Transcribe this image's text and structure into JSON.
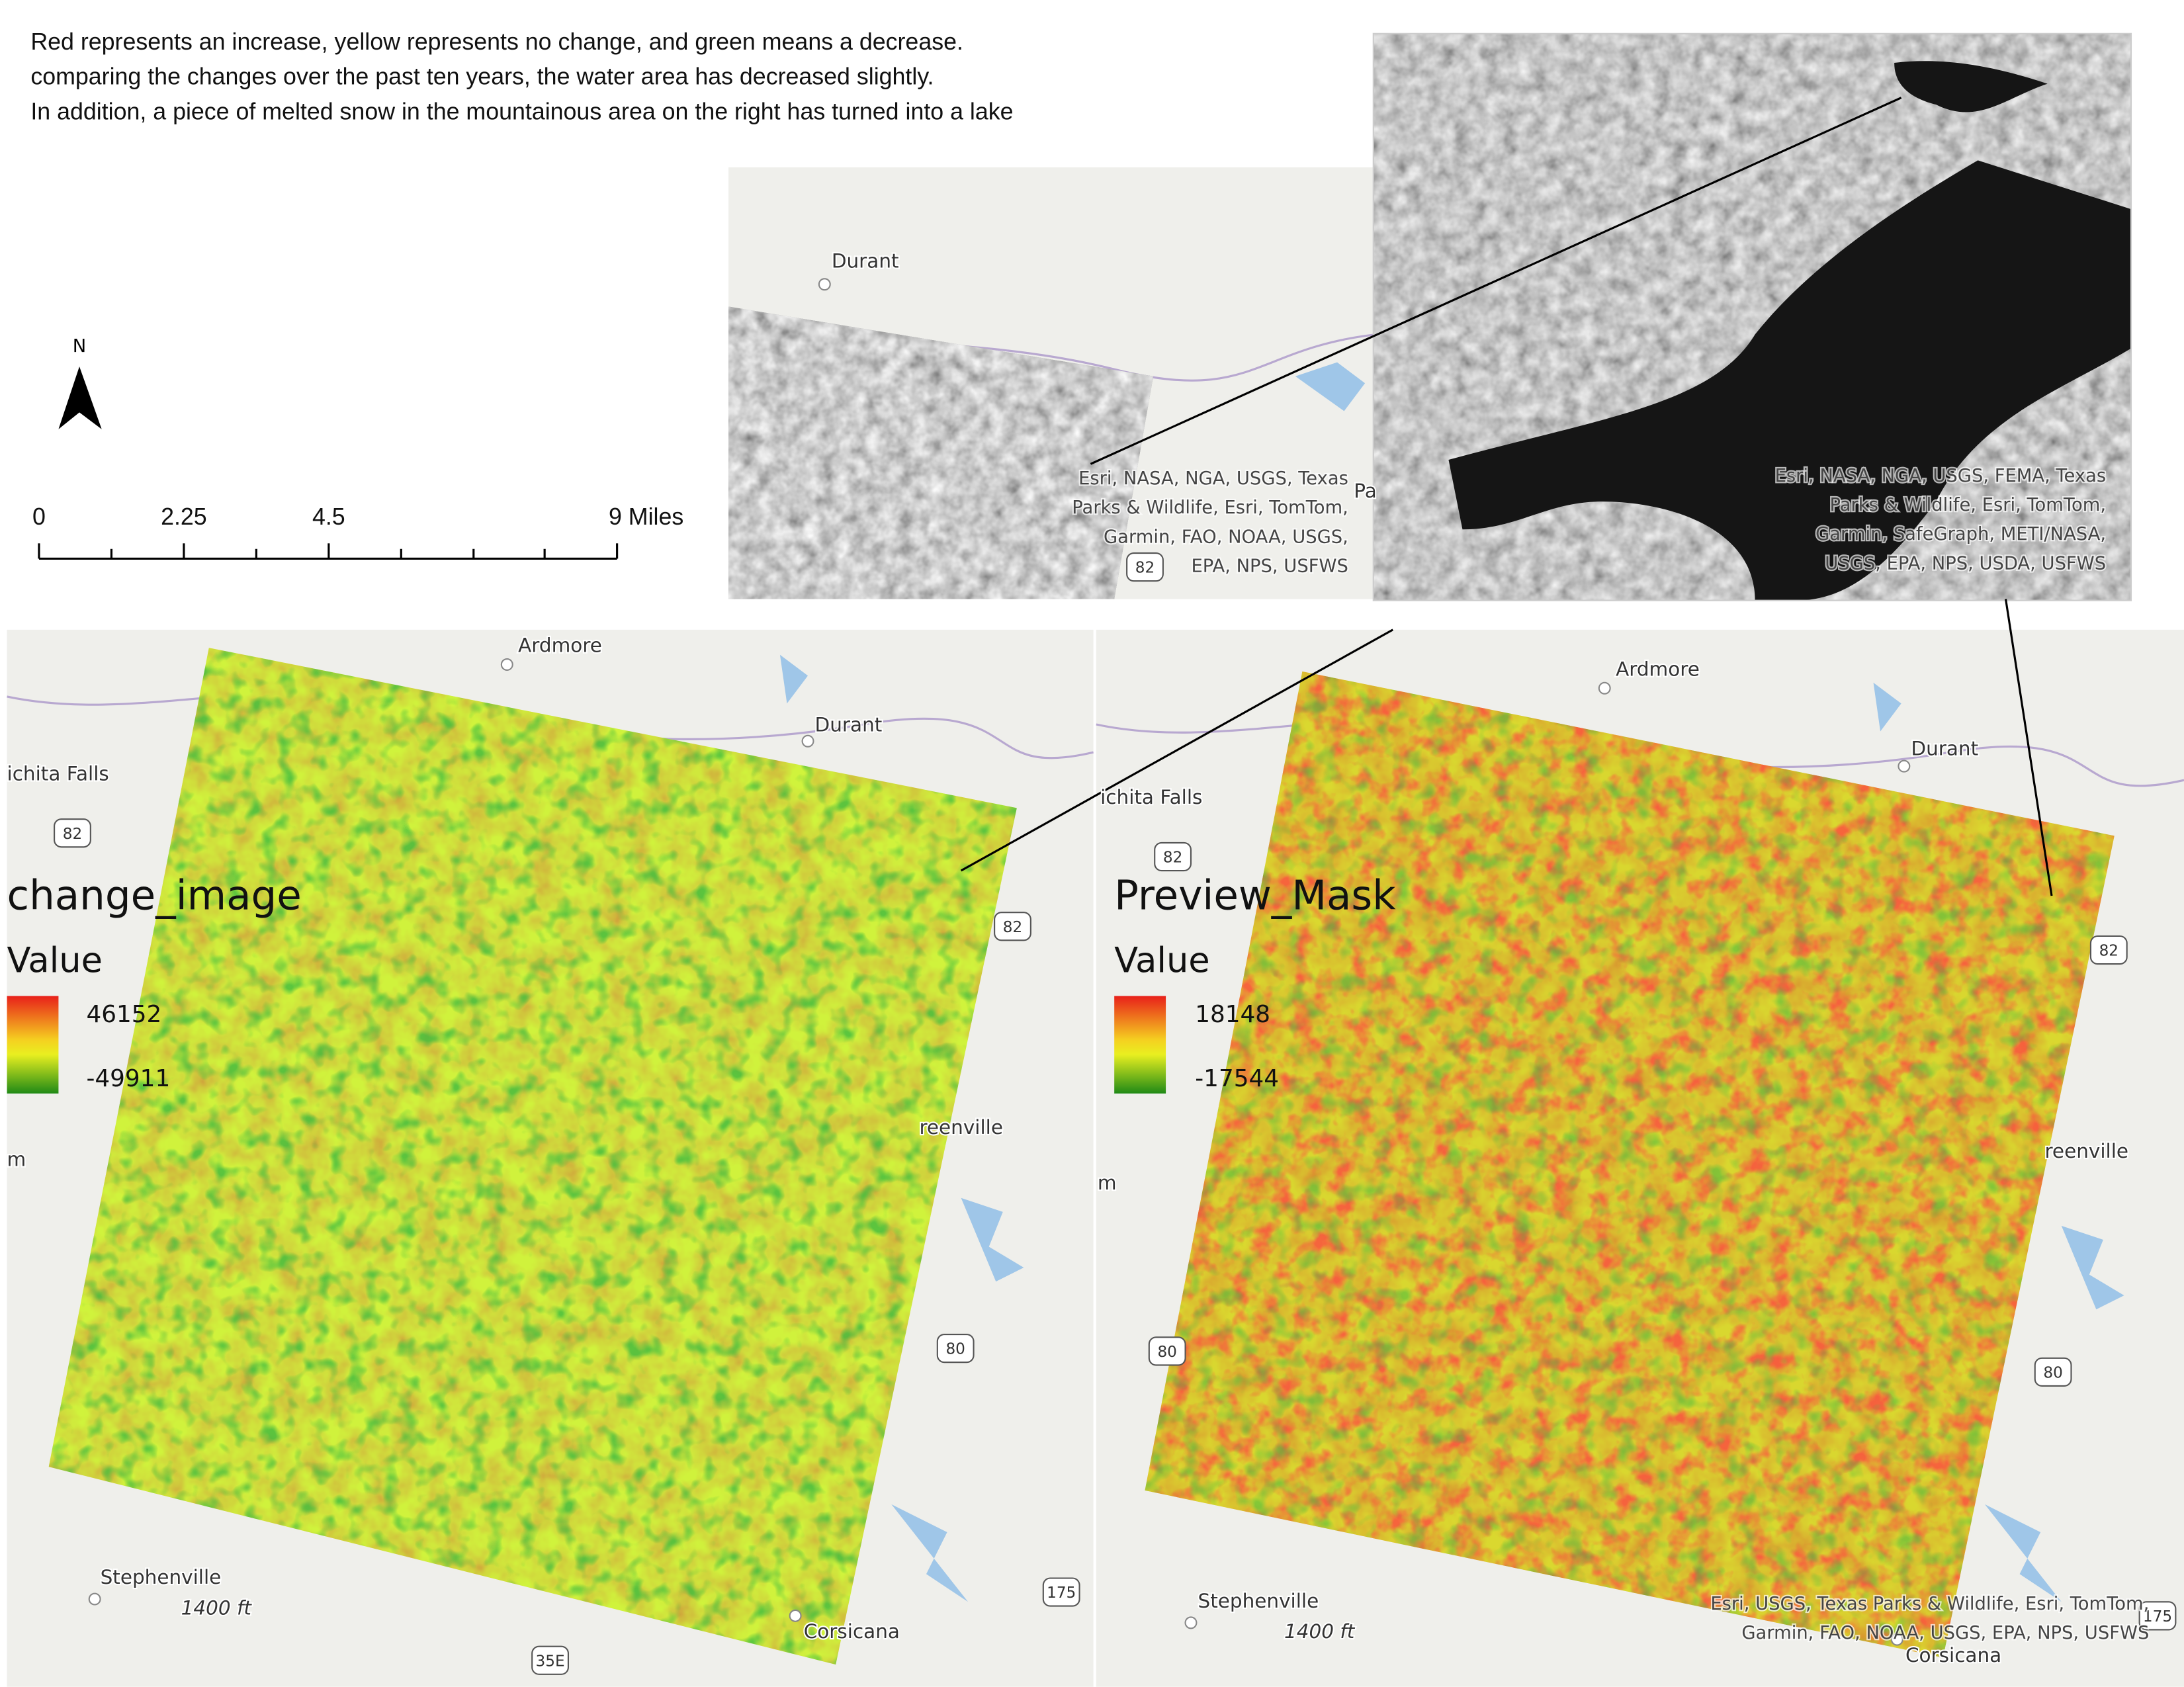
{
  "description": [
    "Red represents an increase, yellow represents no change, and green means a decrease.",
    "comparing the changes over the past ten years, the water area has decreased slightly.",
    "In addition, a piece of melted snow in the  mountainous area on the right has turned into a lake"
  ],
  "north_arrow": {
    "label": "N"
  },
  "scale_bar": {
    "labels": [
      "0",
      "2.25",
      "4.5",
      "9 Miles"
    ]
  },
  "inset_overview": {
    "places": [
      "Durant",
      "Pa"
    ],
    "highways": [
      "82"
    ],
    "attribution": [
      "Esri, NASA, NGA, USGS, Texas",
      "Parks & Wildlife, Esri, TomTom,",
      "Garmin, FAO, NOAA, USGS,",
      "EPA, NPS, USFWS"
    ]
  },
  "inset_zoom": {
    "attribution": [
      "Esri, NASA, NGA, USGS, FEMA, Texas",
      "Parks & Wildlife, Esri, TomTom,",
      "Garmin, SafeGraph, METI/NASA,",
      "USGS, EPA, NPS, USDA, USFWS"
    ]
  },
  "maps": [
    {
      "places": [
        "Ardmore",
        "Durant",
        "ichita Falls",
        "reenville",
        "m",
        "Stephenville",
        "1400 ft",
        "Corsicana"
      ],
      "highways": [
        "82",
        "82",
        "80",
        "35E",
        "175"
      ],
      "legend": {
        "title": "change_image",
        "field": "Value",
        "high": "46152",
        "low": "-49911"
      }
    },
    {
      "places": [
        "Ardmore",
        "Durant",
        "ichita Falls",
        "reenville",
        "m",
        "Stephenville",
        "1400 ft",
        "Corsicana"
      ],
      "highways": [
        "82",
        "82",
        "80",
        "80",
        "175"
      ],
      "legend": {
        "title": "Preview_Mask",
        "field": "Value",
        "high": "18148",
        "low": "-17544"
      },
      "attribution": [
        "Esri, USGS, Texas Parks & Wildlife, Esri, TomTom,",
        "Garmin, FAO, NOAA, USGS, EPA, NPS, USFWS"
      ]
    }
  ]
}
